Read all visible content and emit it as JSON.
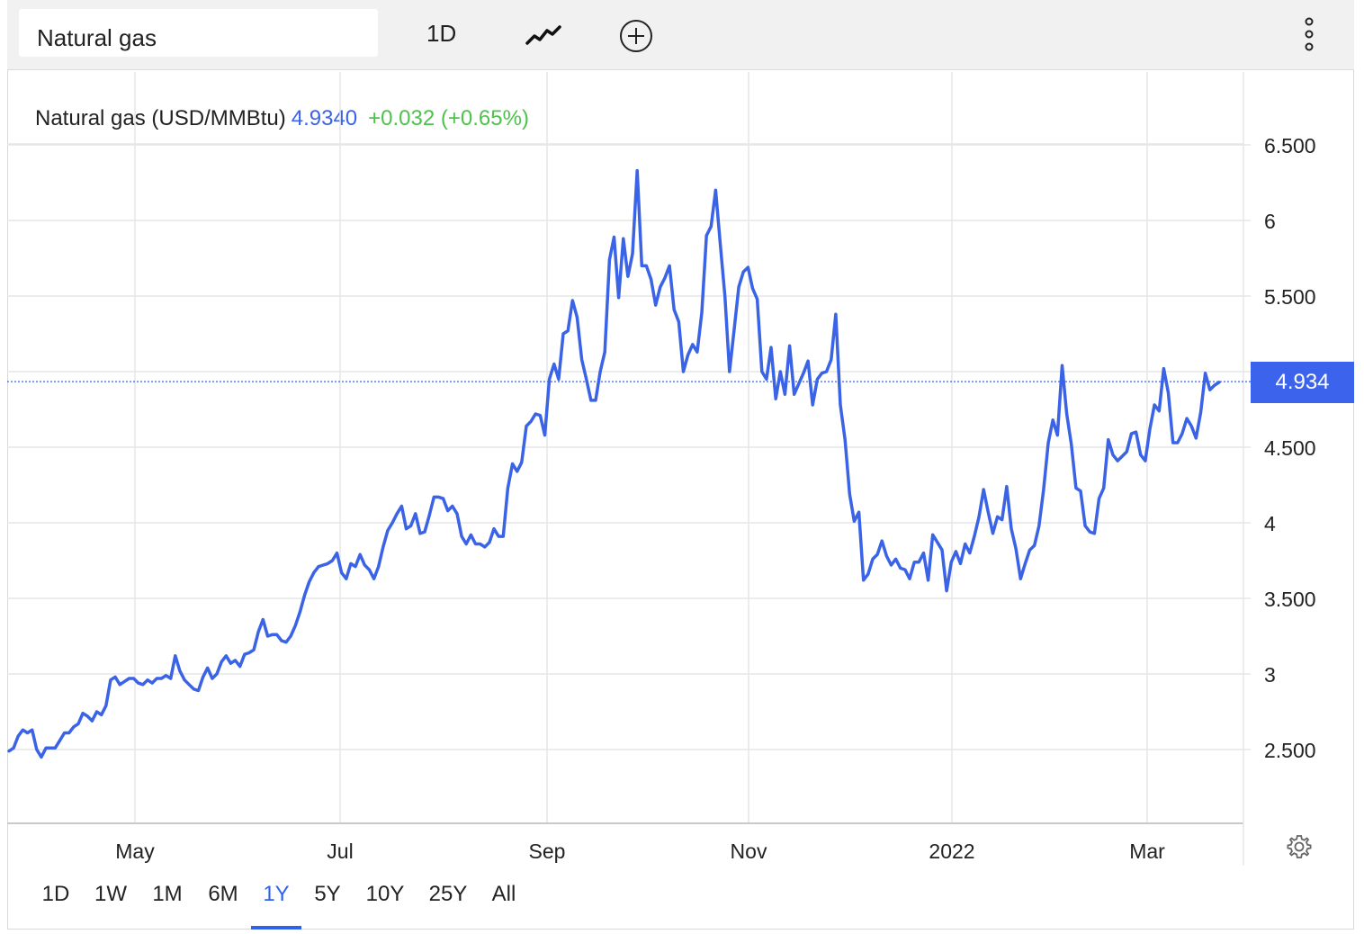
{
  "toolbar": {
    "symbol": "Natural gas",
    "interval": "1D",
    "icons": [
      "line-chart-icon",
      "add-circle-icon",
      "more-vertical-icon"
    ]
  },
  "legend": {
    "name": "Natural gas (USD/MMBtu)",
    "price": "4.9340",
    "change": "+0.032 (+0.65%)"
  },
  "last_price_label": "4.934",
  "ranges": [
    "1D",
    "1W",
    "1M",
    "6M",
    "1Y",
    "5Y",
    "10Y",
    "25Y",
    "All"
  ],
  "active_range": "1Y",
  "colors": {
    "line": "#3a63e6",
    "up": "#4cc34a",
    "active": "#2e62ee"
  },
  "chart_data": {
    "type": "line",
    "title": "Natural gas (USD/MMBtu)",
    "x_tick_labels": [
      "May",
      "Jul",
      "Sep",
      "Nov",
      "2022",
      "Mar"
    ],
    "y_tick_labels": [
      "6.500",
      "6",
      "5.500",
      "4.500",
      "4",
      "3.500",
      "3",
      "2.500"
    ],
    "ylim": [
      2.0,
      6.9
    ],
    "grid": true,
    "last_value": 4.934,
    "series": [
      {
        "values": [
          2.49,
          2.51,
          2.59,
          2.63,
          2.61,
          2.63,
          2.5,
          2.45,
          2.51,
          2.51,
          2.51,
          2.56,
          2.61,
          2.61,
          2.65,
          2.67,
          2.74,
          2.72,
          2.69,
          2.75,
          2.73,
          2.79,
          2.96,
          2.98,
          2.93,
          2.95,
          2.97,
          2.97,
          2.94,
          2.93,
          2.96,
          2.94,
          2.97,
          2.97,
          2.99,
          2.97,
          3.12,
          3.02,
          2.96,
          2.93,
          2.9,
          2.89,
          2.98,
          3.04,
          2.97,
          3.0,
          3.08,
          3.12,
          3.07,
          3.09,
          3.05,
          3.13,
          3.14,
          3.16,
          3.28,
          3.36,
          3.25,
          3.26,
          3.26,
          3.22,
          3.21,
          3.25,
          3.32,
          3.41,
          3.52,
          3.61,
          3.67,
          3.71,
          3.72,
          3.73,
          3.75,
          3.8,
          3.67,
          3.63,
          3.73,
          3.71,
          3.79,
          3.72,
          3.69,
          3.63,
          3.71,
          3.84,
          3.95,
          4.0,
          4.06,
          4.11,
          3.96,
          3.98,
          4.06,
          3.93,
          3.94,
          4.05,
          4.17,
          4.17,
          4.16,
          4.08,
          4.11,
          4.06,
          3.91,
          3.86,
          3.92,
          3.86,
          3.86,
          3.84,
          3.87,
          3.96,
          3.91,
          3.91,
          4.23,
          4.39,
          4.34,
          4.4,
          4.64,
          4.67,
          4.72,
          4.71,
          4.58,
          4.95,
          5.05,
          4.95,
          5.25,
          5.27,
          5.47,
          5.36,
          5.08,
          4.95,
          4.81,
          4.81,
          5.0,
          5.13,
          5.74,
          5.89,
          5.49,
          5.88,
          5.63,
          5.78,
          6.33,
          5.7,
          5.7,
          5.61,
          5.44,
          5.56,
          5.62,
          5.7,
          5.41,
          5.33,
          5.0,
          5.11,
          5.18,
          5.13,
          5.39,
          5.9,
          5.96,
          6.2,
          5.84,
          5.5,
          5.0,
          5.28,
          5.56,
          5.66,
          5.69,
          5.55,
          5.48,
          5.0,
          4.95,
          5.16,
          4.82,
          5.0,
          4.85,
          5.17,
          4.85,
          4.92,
          4.99,
          5.07,
          4.78,
          4.95,
          4.99,
          5.0,
          5.08,
          5.38,
          4.78,
          4.55,
          4.19,
          4.01,
          4.07,
          3.62,
          3.66,
          3.76,
          3.79,
          3.88,
          3.78,
          3.72,
          3.76,
          3.7,
          3.69,
          3.63,
          3.74,
          3.74,
          3.8,
          3.62,
          3.92,
          3.87,
          3.82,
          3.55,
          3.74,
          3.81,
          3.73,
          3.86,
          3.8,
          3.91,
          4.04,
          4.22,
          4.07,
          3.93,
          4.04,
          4.02,
          4.24,
          3.96,
          3.83,
          3.63,
          3.73,
          3.82,
          3.85,
          3.98,
          4.22,
          4.53,
          4.68,
          4.58,
          5.04,
          4.72,
          4.52,
          4.23,
          4.21,
          3.98,
          3.94,
          3.93,
          4.16,
          4.23,
          4.55,
          4.45,
          4.41,
          4.44,
          4.47,
          4.59,
          4.6,
          4.45,
          4.41,
          4.62,
          4.78,
          4.74,
          5.02,
          4.86,
          4.53,
          4.53,
          4.59,
          4.69,
          4.64,
          4.56,
          4.73,
          4.99,
          4.88,
          4.91,
          4.93
        ]
      }
    ]
  }
}
